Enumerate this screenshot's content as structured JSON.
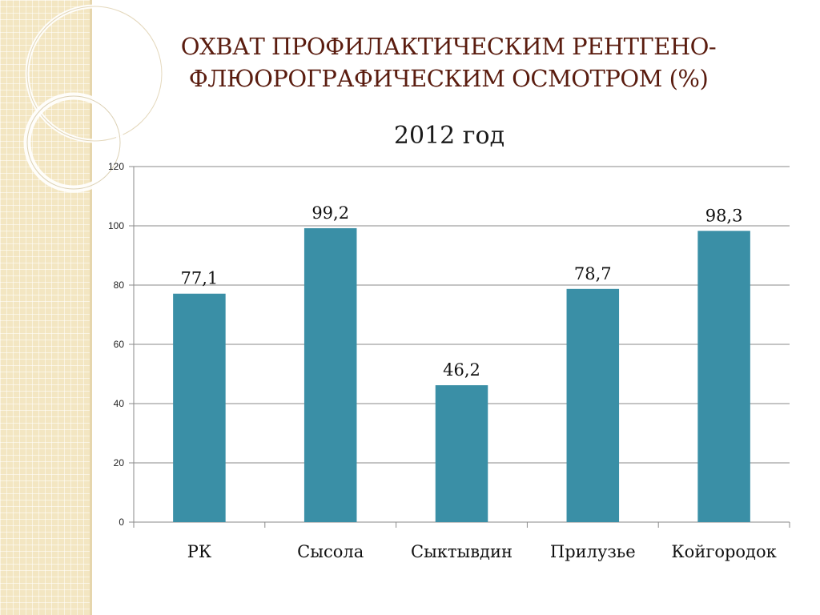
{
  "slide": {
    "title_line1": "ОХВАТ ПРОФИЛАКТИЧЕСКИМ РЕНТГЕНО-",
    "title_line2": "ФЛЮОРОГРАФИЧЕСКИМ ОСМОТРОМ (%)"
  },
  "colors": {
    "bar": "#3a8fa6",
    "grid": "#8a8a8a",
    "title": "#5a1c0f",
    "side_pattern": "#f3e6c2"
  },
  "chart_data": {
    "type": "bar",
    "title": "2012 год",
    "categories": [
      "РК",
      "Сысола",
      "Сыктывдин",
      "Прилузье",
      "Койгородок"
    ],
    "values": [
      77.1,
      99.2,
      46.2,
      78.7,
      98.3
    ],
    "value_labels": [
      "77,1",
      "99,2",
      "46,2",
      "78,7",
      "98,3"
    ],
    "ylim": [
      0,
      120
    ],
    "yticks": [
      0,
      20,
      40,
      60,
      80,
      100,
      120
    ],
    "grid": true,
    "legend": "none"
  }
}
